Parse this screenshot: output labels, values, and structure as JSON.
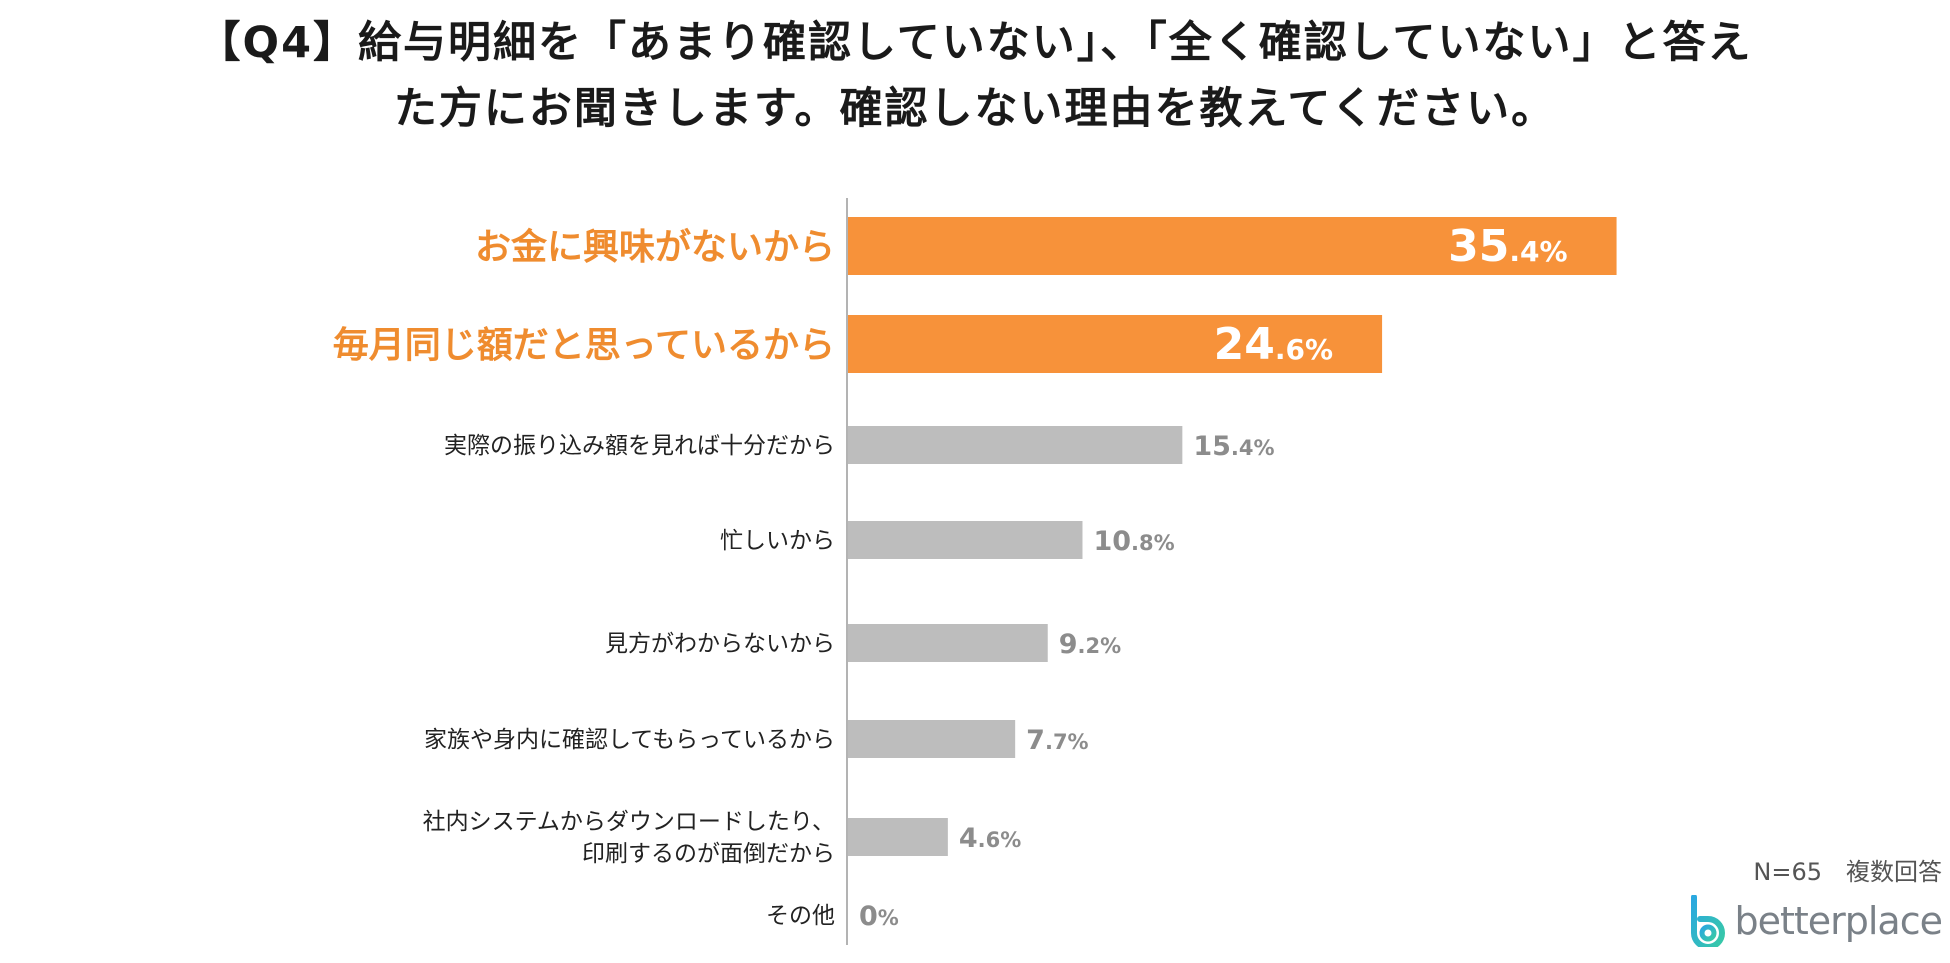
{
  "title": {
    "line1": "【Q4】給与明細を「あまり確認していない」、「全く確認していない」と答え",
    "line2": "た方にお聞きします。確認しない理由を教えてください。"
  },
  "footer": {
    "note": "N=65　複数回答",
    "logo_text": "betterplace",
    "logo_icon": "betterplace-logo-icon"
  },
  "colors": {
    "highlight": "#f7923a",
    "highlight_label": "#ef8c2f",
    "regular": "#bdbdbd",
    "regular_value": "#8c8c8c",
    "axis": "#9a9a9a"
  },
  "chart_data": {
    "type": "bar",
    "orientation": "horizontal",
    "categories": [
      "お金に興味がないから",
      "毎月同じ額だと思っているから",
      "実際の振り込み額を見れば十分だから",
      "忙しいから",
      "見方がわからないから",
      "家族や身内に確認してもらっているから",
      "社内システムからダウンロードしたり、\n印刷するのが面倒だから",
      "その他"
    ],
    "values": [
      35.4,
      24.6,
      15.4,
      10.8,
      9.2,
      7.7,
      4.6,
      0
    ],
    "value_labels": [
      "35.4%",
      "24.6%",
      "15.4%",
      "10.8%",
      "9.2%",
      "7.7%",
      "4.6%",
      "0%"
    ],
    "highlighted": [
      true,
      true,
      false,
      false,
      false,
      false,
      false,
      false
    ],
    "unit": "%",
    "xlim": [
      0,
      41.5
    ],
    "grid": false,
    "legend": "none"
  }
}
